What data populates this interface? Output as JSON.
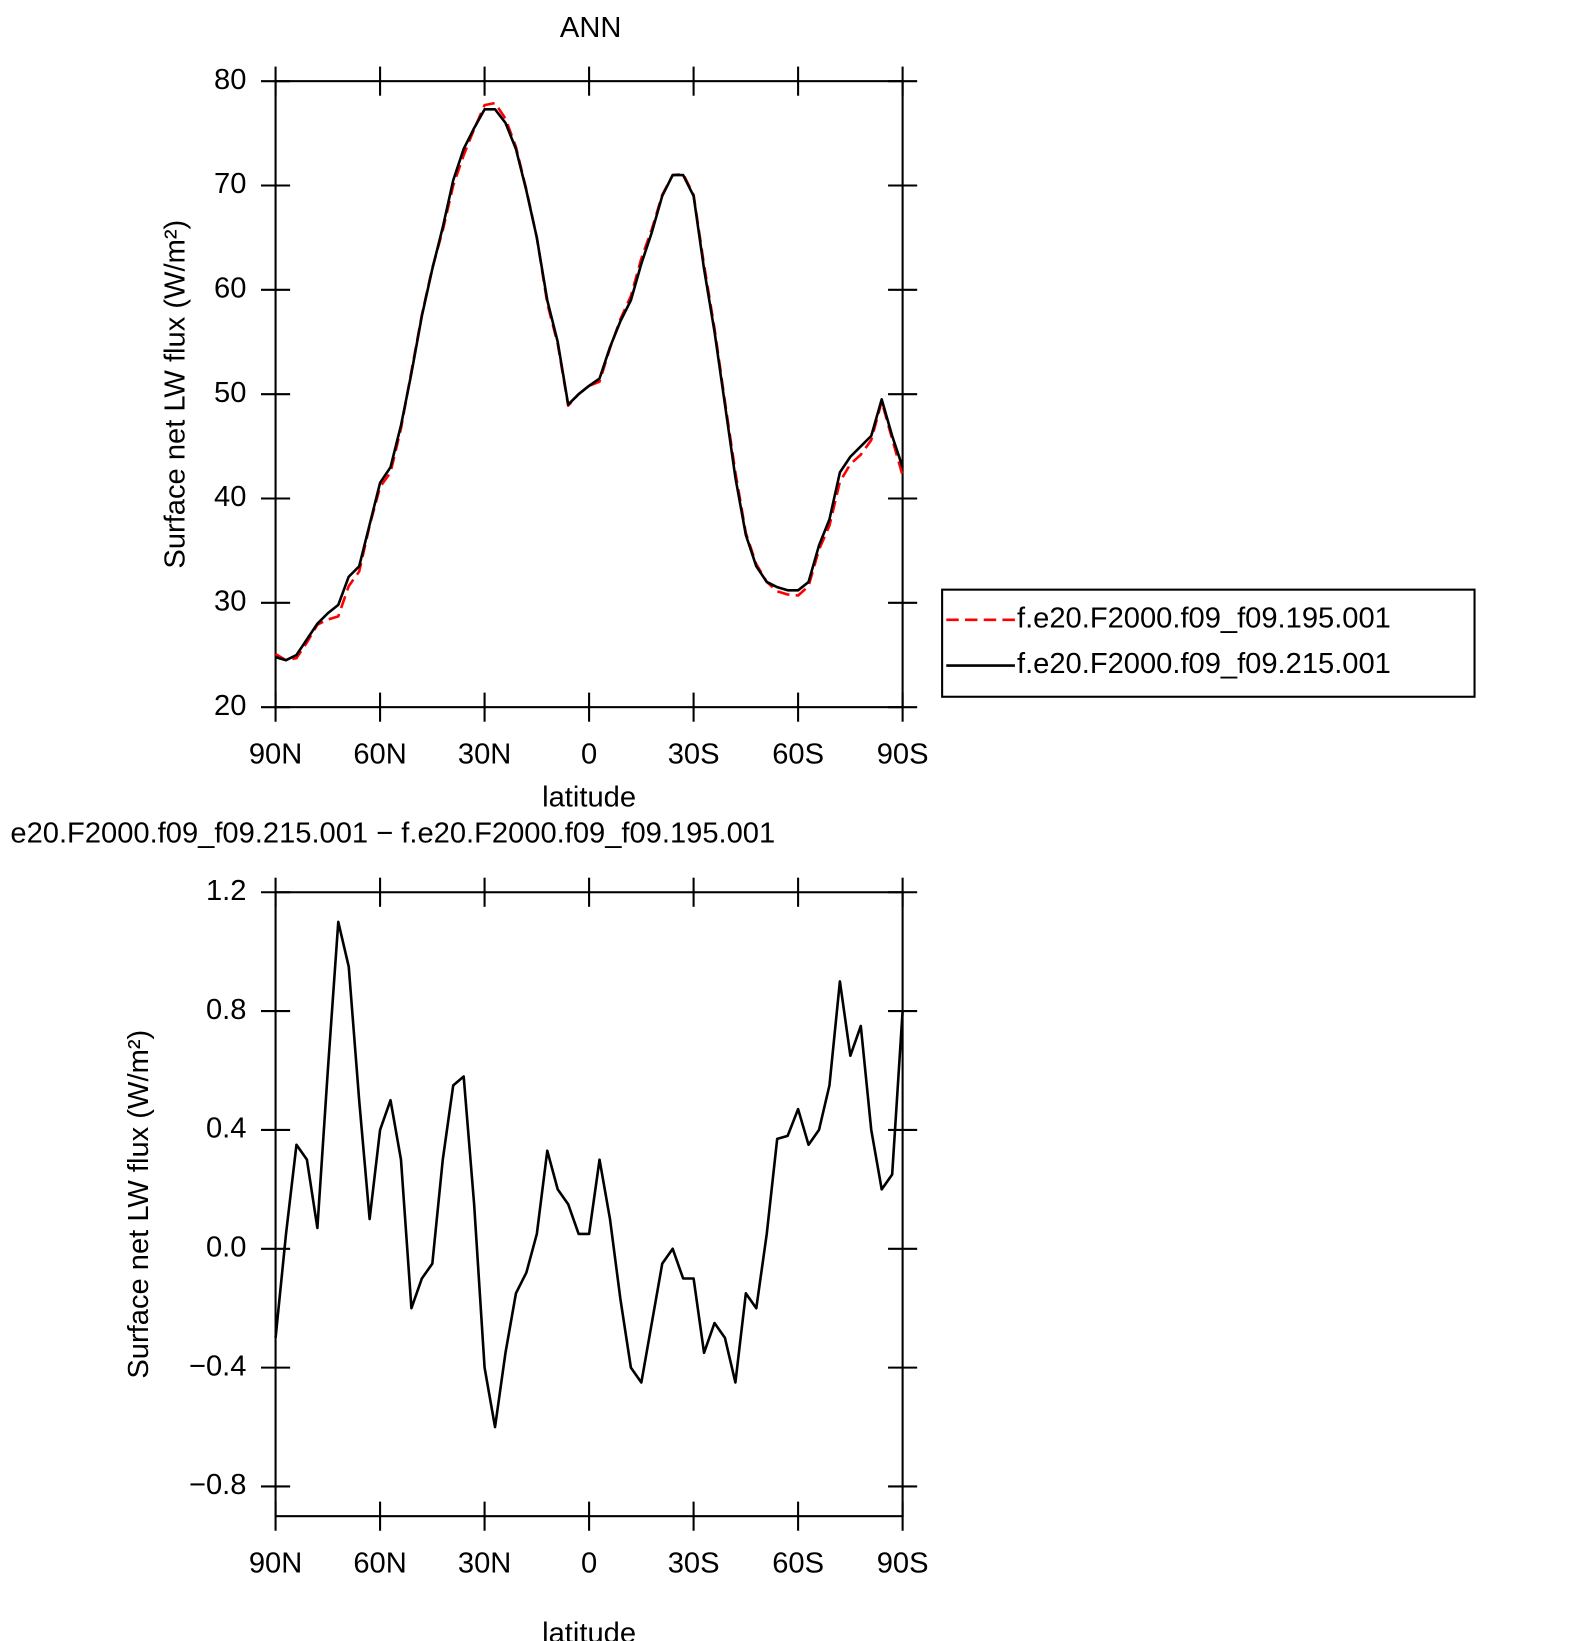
{
  "chart_data": [
    {
      "type": "line",
      "title": "ANN",
      "xlabel": "latitude",
      "ylabel": "Surface net LW flux (W/m²)",
      "x": [
        90,
        87,
        84,
        81,
        78,
        75,
        72,
        69,
        66,
        63,
        60,
        57,
        54,
        51,
        48,
        45,
        42,
        39,
        36,
        33,
        30,
        27,
        24,
        21,
        18,
        15,
        12,
        9,
        6,
        3,
        0,
        -3,
        -6,
        -9,
        -12,
        -15,
        -18,
        -21,
        -24,
        -27,
        -30,
        -33,
        -36,
        -39,
        -42,
        -45,
        -48,
        -51,
        -54,
        -57,
        -60,
        -63,
        -66,
        -69,
        -72,
        -75,
        -78,
        -81,
        -84,
        -87,
        -90
      ],
      "xlim": [
        90,
        -90
      ],
      "xticks": [
        {
          "value": 90,
          "label": "90N"
        },
        {
          "value": 60,
          "label": "60N"
        },
        {
          "value": 30,
          "label": "30N"
        },
        0,
        {
          "value": -30,
          "label": "30S"
        },
        {
          "value": -60,
          "label": "60S"
        },
        {
          "value": -90,
          "label": "90S"
        }
      ],
      "ylim": [
        20,
        80
      ],
      "yticks": [
        20,
        30,
        40,
        50,
        60,
        70,
        80
      ],
      "legend": "right",
      "series": [
        {
          "name": "f.e20.F2000.f09_f09.195.001",
          "color": "#ff0000",
          "linestyle": "dashed",
          "values": [
            25.1,
            24.5,
            24.7,
            26.2,
            27.9,
            28.4,
            28.7,
            31.6,
            33.0,
            37.4,
            41.1,
            42.5,
            46.7,
            52.2,
            57.6,
            62.1,
            65.7,
            70.0,
            72.9,
            75.4,
            77.7,
            77.9,
            76.4,
            73.7,
            69.6,
            65.0,
            58.7,
            54.8,
            48.9,
            50.0,
            50.8,
            51.2,
            54.4,
            57.2,
            59.4,
            63.0,
            65.8,
            69.1,
            71.0,
            71.1,
            69.1,
            62.4,
            56.3,
            49.3,
            42.5,
            36.7,
            33.7,
            32.0,
            31.1,
            30.8,
            30.7,
            31.6,
            35.1,
            37.4,
            41.6,
            43.3,
            44.2,
            45.6,
            49.3,
            45.7,
            42.2
          ]
        },
        {
          "name": "f.e20.F2000.f09_f09.215.001",
          "color": "#000000",
          "linestyle": "solid",
          "values": [
            24.8,
            24.5,
            25.0,
            26.5,
            28.0,
            29.0,
            29.8,
            32.5,
            33.5,
            37.5,
            41.5,
            43.0,
            47.0,
            52.0,
            57.5,
            62.0,
            66.0,
            70.5,
            73.5,
            75.5,
            77.3,
            77.3,
            76.0,
            73.5,
            69.5,
            65.0,
            59.0,
            55.0,
            49.0,
            50.0,
            50.8,
            51.5,
            54.5,
            57.0,
            59.0,
            62.5,
            65.5,
            69.0,
            71.0,
            71.0,
            69.0,
            62.0,
            56.0,
            49.0,
            42.0,
            36.5,
            33.5,
            32.0,
            31.5,
            31.2,
            31.2,
            32.0,
            35.5,
            38.0,
            42.5,
            44.0,
            45.0,
            46.0,
            49.5,
            46.0,
            43.0
          ]
        }
      ]
    },
    {
      "type": "line",
      "title": "e20.F2000.f09_f09.215.001 − f.e20.F2000.f09_f09.195.001",
      "xlabel": "latitude",
      "ylabel": "Surface net LW flux (W/m²)",
      "x": [
        90,
        87,
        84,
        81,
        78,
        75,
        72,
        69,
        66,
        63,
        60,
        57,
        54,
        51,
        48,
        45,
        42,
        39,
        36,
        33,
        30,
        27,
        24,
        21,
        18,
        15,
        12,
        9,
        6,
        3,
        0,
        -3,
        -6,
        -9,
        -12,
        -15,
        -18,
        -21,
        -24,
        -27,
        -30,
        -33,
        -36,
        -39,
        -42,
        -45,
        -48,
        -51,
        -54,
        -57,
        -60,
        -63,
        -66,
        -69,
        -72,
        -75,
        -78,
        -81,
        -84,
        -87,
        -90
      ],
      "xlim": [
        90,
        -90
      ],
      "xticks": [
        {
          "value": 90,
          "label": "90N"
        },
        {
          "value": 60,
          "label": "60N"
        },
        {
          "value": 30,
          "label": "30N"
        },
        0,
        {
          "value": -30,
          "label": "30S"
        },
        {
          "value": -60,
          "label": "60S"
        },
        {
          "value": -90,
          "label": "90S"
        }
      ],
      "ylim": [
        -0.9,
        1.2
      ],
      "yticks": [
        {
          "value": -0.8,
          "label": "−0.8"
        },
        {
          "value": -0.4,
          "label": "−0.4"
        },
        {
          "value": 0,
          "label": "0.0"
        },
        0.4,
        0.8,
        1.2
      ],
      "series": [
        {
          "color": "#000000",
          "linestyle": "solid",
          "values": [
            -0.3,
            0.05,
            0.35,
            0.3,
            0.07,
            0.6,
            1.1,
            0.95,
            0.5,
            0.1,
            0.4,
            0.5,
            0.3,
            -0.2,
            -0.1,
            -0.05,
            0.3,
            0.55,
            0.58,
            0.15,
            -0.4,
            -0.6,
            -0.35,
            -0.15,
            -0.08,
            0.05,
            0.33,
            0.2,
            0.15,
            0.05,
            0.05,
            0.3,
            0.1,
            -0.17,
            -0.4,
            -0.45,
            -0.25,
            -0.05,
            0.0,
            -0.1,
            -0.1,
            -0.35,
            -0.25,
            -0.3,
            -0.45,
            -0.15,
            -0.2,
            0.05,
            0.37,
            0.38,
            0.47,
            0.35,
            0.4,
            0.55,
            0.9,
            0.65,
            0.75,
            0.4,
            0.2,
            0.25,
            0.8
          ]
        }
      ]
    }
  ]
}
